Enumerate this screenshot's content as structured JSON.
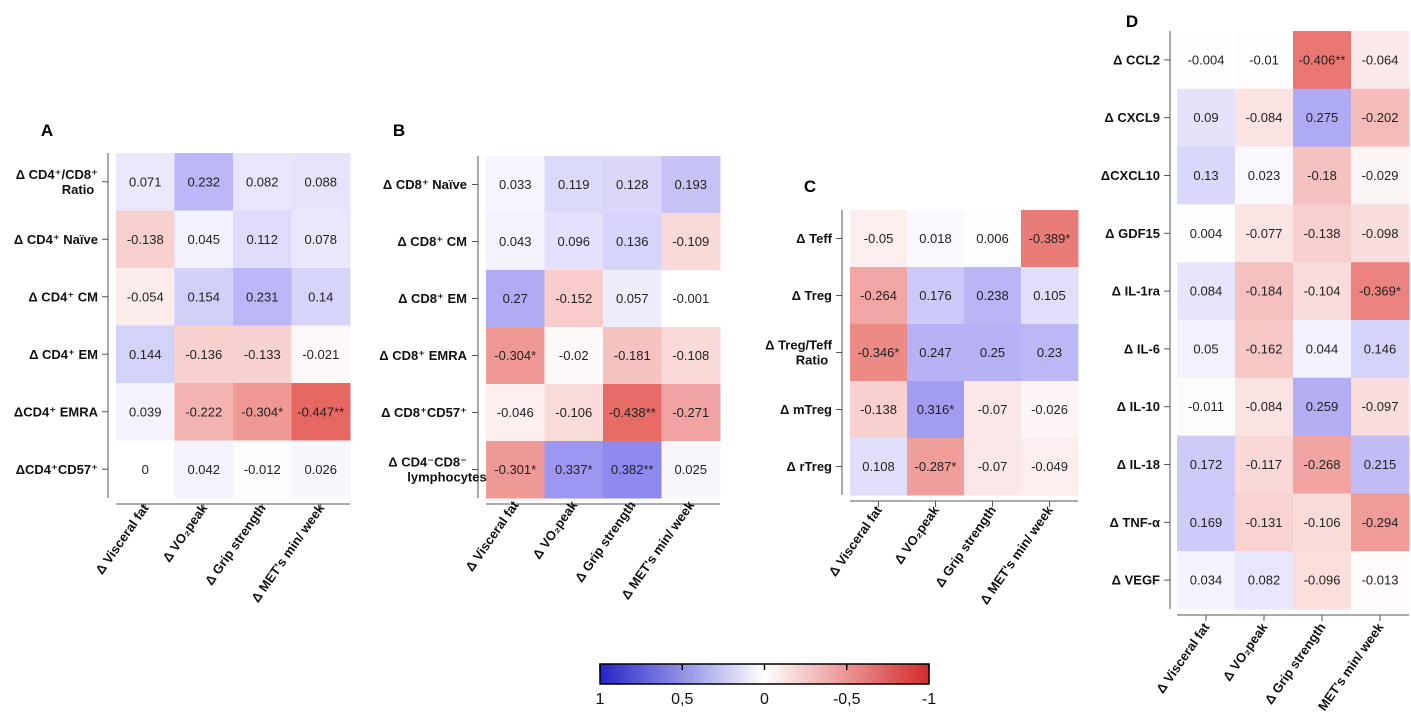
{
  "chart_data": [
    {
      "type": "heatmap",
      "panel": "A",
      "columns": [
        "Δ  Visceral fat",
        "Δ  VO₂peak",
        "Δ  Grip strength",
        "Δ  MET's min/ week"
      ],
      "rows": [
        {
          "label": [
            "Δ CD4⁺/CD8⁺",
            "Ratio"
          ],
          "values": [
            0.071,
            0.232,
            0.082,
            0.088
          ],
          "texts": [
            "0.071",
            "0.232",
            "0.082",
            "0.088"
          ]
        },
        {
          "label": [
            "Δ CD4⁺ Naïve"
          ],
          "values": [
            -0.138,
            0.045,
            0.112,
            0.078
          ],
          "texts": [
            "-0.138",
            "0.045",
            "0.112",
            "0.078"
          ]
        },
        {
          "label": [
            "Δ CD4⁺ CM"
          ],
          "values": [
            -0.054,
            0.154,
            0.231,
            0.14
          ],
          "texts": [
            "-0.054",
            "0.154",
            "0.231",
            "0.14"
          ]
        },
        {
          "label": [
            "Δ CD4⁺ EM"
          ],
          "values": [
            0.144,
            -0.136,
            -0.133,
            -0.021
          ],
          "texts": [
            "0.144",
            "-0.136",
            "-0.133",
            "-0.021"
          ]
        },
        {
          "label": [
            "ΔCD4⁺ EMRA"
          ],
          "values": [
            0.039,
            -0.222,
            -0.304,
            -0.447
          ],
          "texts": [
            "0.039",
            "-0.222",
            "-0.304*",
            "-0.447**"
          ]
        },
        {
          "label": [
            "ΔCD4⁺CD57⁺"
          ],
          "values": [
            0,
            0.042,
            -0.012,
            0.026
          ],
          "texts": [
            "0",
            "0.042",
            "-0.012",
            "0.026"
          ]
        }
      ]
    },
    {
      "type": "heatmap",
      "panel": "B",
      "columns": [
        "Δ  Visceral fat",
        "Δ  VO₂peak",
        "Δ  Grip strength",
        "Δ  MET's min/ week"
      ],
      "rows": [
        {
          "label": [
            "Δ CD8⁺ Naïve"
          ],
          "values": [
            0.033,
            0.119,
            0.128,
            0.193
          ],
          "texts": [
            "0.033",
            "0.119",
            "0.128",
            "0.193"
          ]
        },
        {
          "label": [
            "Δ CD8⁺ CM"
          ],
          "values": [
            0.043,
            0.096,
            0.136,
            -0.109
          ],
          "texts": [
            "0.043",
            "0.096",
            "0.136",
            "-0.109"
          ]
        },
        {
          "label": [
            "Δ CD8⁺ EM"
          ],
          "values": [
            0.27,
            -0.152,
            0.057,
            -0.001
          ],
          "texts": [
            "0.27",
            "-0.152",
            "0.057",
            "-0.001"
          ]
        },
        {
          "label": [
            "Δ CD8⁺ EMRA"
          ],
          "values": [
            -0.304,
            -0.02,
            -0.181,
            -0.108
          ],
          "texts": [
            "-0.304*",
            "-0.02",
            "-0.181",
            "-0.108"
          ]
        },
        {
          "label": [
            "Δ CD8⁺CD57⁺"
          ],
          "values": [
            -0.046,
            -0.106,
            -0.438,
            -0.271
          ],
          "texts": [
            "-0.046",
            "-0.106",
            "-0.438**",
            "-0.271"
          ]
        },
        {
          "label": [
            "Δ CD4⁻CD8⁻",
            "lymphocytes"
          ],
          "values": [
            -0.301,
            0.337,
            0.382,
            0.025
          ],
          "texts": [
            "-0.301*",
            "0.337*",
            "0.382**",
            "0.025"
          ]
        }
      ]
    },
    {
      "type": "heatmap",
      "panel": "C",
      "columns": [
        "Δ  Visceral fat",
        "Δ  VO₂peak",
        "Δ  Grip strength",
        "Δ  MET's min/ week"
      ],
      "rows": [
        {
          "label": [
            "Δ Teff"
          ],
          "values": [
            -0.05,
            0.018,
            0.006,
            -0.389
          ],
          "texts": [
            "-0.05",
            "0.018",
            "0.006",
            "-0.389*"
          ]
        },
        {
          "label": [
            "Δ Treg"
          ],
          "values": [
            -0.264,
            0.176,
            0.238,
            0.105
          ],
          "texts": [
            "-0.264",
            "0.176",
            "0.238",
            "0.105"
          ]
        },
        {
          "label": [
            "Δ Treg/Teff",
            "Ratio"
          ],
          "values": [
            -0.346,
            0.247,
            0.25,
            0.23
          ],
          "texts": [
            "-0.346*",
            "0.247",
            "0.25",
            "0.23"
          ]
        },
        {
          "label": [
            "Δ mTreg"
          ],
          "values": [
            -0.138,
            0.316,
            -0.07,
            -0.026
          ],
          "texts": [
            "-0.138",
            "0.316*",
            "-0.07",
            "-0.026"
          ]
        },
        {
          "label": [
            "Δ rTreg"
          ],
          "values": [
            0.108,
            -0.287,
            -0.07,
            -0.049
          ],
          "texts": [
            "0.108",
            "-0.287*",
            "-0.07",
            "-0.049"
          ]
        }
      ]
    },
    {
      "type": "heatmap",
      "panel": "D",
      "columns": [
        "Δ  Visceral fat",
        "Δ  VO₂peak",
        "Δ  Grip strength",
        "MET's min/ week"
      ],
      "rows": [
        {
          "label": [
            "Δ CCL2"
          ],
          "values": [
            -0.004,
            -0.01,
            -0.406,
            -0.064
          ],
          "texts": [
            "-0.004",
            "-0.01",
            "-0.406**",
            "-0.064"
          ]
        },
        {
          "label": [
            "Δ CXCL9"
          ],
          "values": [
            0.09,
            -0.084,
            0.275,
            -0.202
          ],
          "texts": [
            "0.09",
            "-0.084",
            "0.275",
            "-0.202"
          ]
        },
        {
          "label": [
            "ΔCXCL10"
          ],
          "values": [
            0.13,
            0.023,
            -0.18,
            -0.029
          ],
          "texts": [
            "0.13",
            "0.023",
            "-0.18",
            "-0.029"
          ]
        },
        {
          "label": [
            "Δ GDF15"
          ],
          "values": [
            0.004,
            -0.077,
            -0.138,
            -0.098
          ],
          "texts": [
            "0.004",
            "-0.077",
            "-0.138",
            "-0.098"
          ]
        },
        {
          "label": [
            "Δ IL-1ra"
          ],
          "values": [
            0.084,
            -0.184,
            -0.104,
            -0.369
          ],
          "texts": [
            "0.084",
            "-0.184",
            "-0.104",
            "-0.369*"
          ]
        },
        {
          "label": [
            "Δ IL-6"
          ],
          "values": [
            0.05,
            -0.162,
            0.044,
            0.146
          ],
          "texts": [
            "0.05",
            "-0.162",
            "0.044",
            "0.146"
          ]
        },
        {
          "label": [
            "Δ IL-10"
          ],
          "values": [
            -0.011,
            -0.084,
            0.259,
            -0.097
          ],
          "texts": [
            "-0.011",
            "-0.084",
            "0.259",
            "-0.097"
          ]
        },
        {
          "label": [
            "Δ IL-18"
          ],
          "values": [
            0.172,
            -0.117,
            -0.268,
            0.215
          ],
          "texts": [
            "0.172",
            "-0.117",
            "-0.268",
            "0.215"
          ]
        },
        {
          "label": [
            "Δ TNF-α"
          ],
          "values": [
            0.169,
            -0.131,
            -0.106,
            -0.294
          ],
          "texts": [
            "0.169",
            "-0.131",
            "-0.106",
            "-0.294"
          ]
        },
        {
          "label": [
            "Δ VEGF"
          ],
          "values": [
            0.034,
            0.082,
            -0.096,
            -0.013
          ],
          "texts": [
            "0.034",
            "0.082",
            "-0.096",
            "-0.013"
          ]
        }
      ]
    }
  ],
  "colorbar": {
    "range": [
      1,
      -1
    ],
    "tick_labels": [
      "1",
      "0,5",
      "0",
      "-0,5",
      "-1"
    ],
    "tick_values": [
      1,
      0.5,
      0,
      -0.5,
      -1
    ],
    "colors": {
      "positive": "#2929c8",
      "zero": "#ffffff",
      "negative": "#d73030"
    }
  }
}
